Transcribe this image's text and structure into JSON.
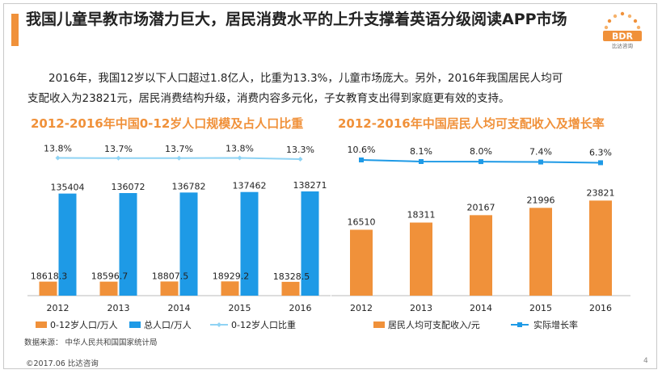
{
  "header": {
    "title": "我国儿童早教市场潜力巨大，居民消费水平的上升支撑着英语分级阅读APP市场",
    "logo_text": "BDR",
    "logo_sub": "比达咨询"
  },
  "body": {
    "line1": "2016年，我国12岁以下人口超过1.8亿人，比重为13.3%，儿童市场庞大。另外，2016年我国居民人均可",
    "line2": "支配收入为23821元，居民消费结构升级，消费内容多元化，子女教育支出得到家庭更有效的支持。"
  },
  "chart_data": [
    {
      "type": "bar",
      "title": "2012-2016年中国0-12岁人口规模及占人口比重",
      "categories": [
        "2012",
        "2013",
        "2014",
        "2015",
        "2016"
      ],
      "series": [
        {
          "name": "0-12岁人口/万人",
          "values": [
            18618.3,
            18596.7,
            18807.5,
            18929.2,
            18328.5
          ],
          "labels": [
            "18618.3",
            "18596.7",
            "18807.5",
            "18929.2",
            "18328.5"
          ],
          "color": "#f0913a"
        },
        {
          "name": "总人口/万人",
          "values": [
            135404,
            136072,
            136782,
            137462,
            138271
          ],
          "labels": [
            "135404",
            "136072",
            "136782",
            "137462",
            "138271"
          ],
          "color": "#1e9ae6"
        },
        {
          "name": "0-12岁人口比重",
          "type": "line",
          "values": [
            13.8,
            13.7,
            13.7,
            13.8,
            13.3
          ],
          "labels": [
            "13.8%",
            "13.7%",
            "13.7%",
            "13.8%",
            "13.3%"
          ],
          "color": "#8fd3f4"
        }
      ],
      "ylim": [
        0,
        180000
      ]
    },
    {
      "type": "bar",
      "title": "2012-2016年中国居民人均可支配收入及增长率",
      "categories": [
        "2012",
        "2013",
        "2014",
        "2015",
        "2016"
      ],
      "series": [
        {
          "name": "居民人均可支配收入/元",
          "values": [
            16510,
            18311,
            20167,
            21996,
            23821
          ],
          "labels": [
            "16510",
            "18311",
            "20167",
            "21996",
            "23821"
          ],
          "color": "#f0913a"
        },
        {
          "name": "实际增长率",
          "type": "line",
          "values": [
            10.6,
            8.1,
            8.0,
            7.4,
            6.3
          ],
          "labels": [
            "10.6%",
            "8.1%",
            "8.0%",
            "7.4%",
            "6.3%"
          ],
          "color": "#1e9ae6"
        }
      ],
      "ylim": [
        0,
        34000
      ]
    }
  ],
  "footer": {
    "source": "数据来源： 中华人民共和国国家统计局",
    "copyright": "©2017.06   比达咨询",
    "page": "4"
  }
}
